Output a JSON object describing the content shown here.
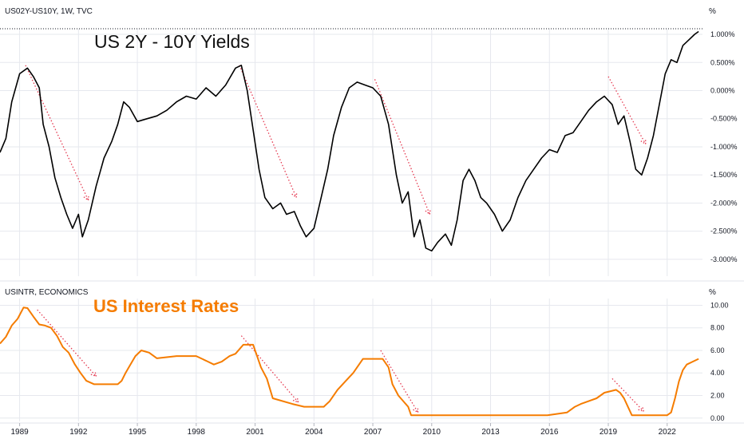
{
  "header": {
    "top_symbol": "US02Y-US10Y, 1W, TVC",
    "top_unit": "%",
    "top_overlay_title": "US 2Y - 10Y Yields",
    "bottom_symbol": "USINTR, ECONOMICS",
    "bottom_unit": "%",
    "bottom_overlay_title": "US Interest Rates"
  },
  "colors": {
    "yield_line": "#000000",
    "rate_line": "#f57c00",
    "overlay_title_top": "#111111",
    "overlay_title_bottom": "#f57c00",
    "annotation_dotted": "#e53950",
    "grid": "#e6e8ee",
    "axis_text": "#131722"
  },
  "chart_data": [
    {
      "type": "line",
      "title": "US 2Y - 10Y Yields",
      "symbol": "US02Y-US10Y, 1W, TVC",
      "y_unit": "%",
      "ylim": [
        -3.3,
        1.1
      ],
      "y_ticks": [
        "1.000%",
        "0.500%",
        "0.000%",
        "-0.500%",
        "-1.000%",
        "-1.500%",
        "-2.000%",
        "-2.500%",
        "-3.000%"
      ],
      "y_tick_values": [
        1.0,
        0.5,
        0.0,
        -0.5,
        -1.0,
        -1.5,
        -2.0,
        -2.5,
        -3.0
      ],
      "xlim": [
        1988.0,
        2023.8
      ],
      "x_ticks": [
        "1989",
        "1992",
        "1995",
        "1998",
        "2001",
        "2004",
        "2007",
        "2010",
        "2013",
        "2016",
        "2019",
        "2022"
      ],
      "x_tick_values": [
        1989,
        1992,
        1995,
        1998,
        2001,
        2004,
        2007,
        2010,
        2013,
        2016,
        2019,
        2022
      ],
      "series": [
        {
          "x": [
            1988.0,
            1988.3,
            1988.6,
            1989.0,
            1989.4,
            1989.7,
            1990.0,
            1990.2,
            1990.5,
            1990.8,
            1991.1,
            1991.4,
            1991.7,
            1992.0,
            1992.2,
            1992.5,
            1992.9,
            1993.3,
            1993.7,
            1994.0,
            1994.3,
            1994.6,
            1995.0,
            1995.5,
            1996.0,
            1996.5,
            1997.0,
            1997.5,
            1998.0,
            1998.5,
            1999.0,
            1999.5,
            2000.0,
            2000.3,
            2000.6,
            2000.9,
            2001.2,
            2001.5,
            2001.9,
            2002.3,
            2002.6,
            2003.0,
            2003.3,
            2003.6,
            2004.0,
            2004.3,
            2004.7,
            2005.0,
            2005.4,
            2005.8,
            2006.2,
            2006.6,
            2007.0,
            2007.4,
            2007.8,
            2008.2,
            2008.5,
            2008.8,
            2009.1,
            2009.4,
            2009.7,
            2010.0,
            2010.3,
            2010.7,
            2011.0,
            2011.3,
            2011.6,
            2011.9,
            2012.2,
            2012.5,
            2012.8,
            2013.2,
            2013.6,
            2014.0,
            2014.4,
            2014.8,
            2015.2,
            2015.6,
            2016.0,
            2016.4,
            2016.8,
            2017.2,
            2017.6,
            2018.0,
            2018.4,
            2018.8,
            2019.2,
            2019.5,
            2019.8,
            2020.1,
            2020.4,
            2020.7,
            2021.0,
            2021.3,
            2021.6,
            2021.9,
            2022.2,
            2022.5,
            2022.8,
            2023.1,
            2023.4,
            2023.6
          ],
          "y": [
            -1.1,
            -0.85,
            -0.2,
            0.3,
            0.4,
            0.25,
            0.05,
            -0.6,
            -1.0,
            -1.55,
            -1.9,
            -2.2,
            -2.45,
            -2.2,
            -2.6,
            -2.3,
            -1.7,
            -1.2,
            -0.9,
            -0.6,
            -0.2,
            -0.3,
            -0.55,
            -0.5,
            -0.45,
            -0.35,
            -0.2,
            -0.1,
            -0.15,
            0.05,
            -0.1,
            0.1,
            0.4,
            0.45,
            0.0,
            -0.7,
            -1.4,
            -1.9,
            -2.1,
            -2.0,
            -2.2,
            -2.15,
            -2.4,
            -2.6,
            -2.45,
            -2.0,
            -1.4,
            -0.8,
            -0.3,
            0.05,
            0.15,
            0.1,
            0.05,
            -0.1,
            -0.6,
            -1.5,
            -2.0,
            -1.8,
            -2.6,
            -2.3,
            -2.8,
            -2.85,
            -2.7,
            -2.55,
            -2.75,
            -2.3,
            -1.6,
            -1.4,
            -1.6,
            -1.9,
            -2.0,
            -2.2,
            -2.5,
            -2.3,
            -1.9,
            -1.6,
            -1.4,
            -1.2,
            -1.05,
            -1.1,
            -0.8,
            -0.75,
            -0.55,
            -0.35,
            -0.2,
            -0.1,
            -0.25,
            -0.6,
            -0.45,
            -0.9,
            -1.4,
            -1.5,
            -1.2,
            -0.8,
            -0.25,
            0.3,
            0.55,
            0.5,
            0.8,
            0.9,
            1.0,
            1.05
          ]
        }
      ],
      "annotations": [
        {
          "type": "dotted-arrow",
          "x": [
            1989.3,
            1992.5
          ],
          "y": [
            0.45,
            -1.95
          ]
        },
        {
          "type": "dotted-arrow",
          "x": [
            2000.2,
            2003.1
          ],
          "y": [
            0.45,
            -1.9
          ]
        },
        {
          "type": "dotted-arrow",
          "x": [
            2007.1,
            2009.9
          ],
          "y": [
            0.2,
            -2.2
          ]
        },
        {
          "type": "dotted-arrow",
          "x": [
            2019.0,
            2020.9
          ],
          "y": [
            0.25,
            -0.95
          ]
        }
      ]
    },
    {
      "type": "line",
      "title": "US Interest Rates",
      "symbol": "USINTR, ECONOMICS",
      "y_unit": "%",
      "ylim": [
        -0.3,
        10.6
      ],
      "y_ticks": [
        "10.00",
        "8.00",
        "6.00",
        "4.00",
        "2.00",
        "0.00"
      ],
      "y_tick_values": [
        10,
        8,
        6,
        4,
        2,
        0
      ],
      "xlim": [
        1988.0,
        2023.8
      ],
      "x_ticks": [
        "1989",
        "1992",
        "1995",
        "1998",
        "2001",
        "2004",
        "2007",
        "2010",
        "2013",
        "2016",
        "2019",
        "2022"
      ],
      "x_tick_values": [
        1989,
        1992,
        1995,
        1998,
        2001,
        2004,
        2007,
        2010,
        2013,
        2016,
        2019,
        2022
      ],
      "series": [
        {
          "x": [
            1988.0,
            1988.3,
            1988.6,
            1988.9,
            1989.2,
            1989.4,
            1989.7,
            1990.0,
            1990.3,
            1990.6,
            1990.9,
            1991.2,
            1991.5,
            1991.8,
            1992.1,
            1992.4,
            1992.8,
            1993.5,
            1994.0,
            1994.2,
            1994.4,
            1994.6,
            1994.9,
            1995.2,
            1995.6,
            1996.0,
            1997.0,
            1997.3,
            1998.0,
            1998.6,
            1998.9,
            1999.3,
            1999.7,
            2000.0,
            2000.4,
            2000.9,
            2001.1,
            2001.3,
            2001.6,
            2001.9,
            2002.9,
            2003.5,
            2004.5,
            2004.8,
            2005.2,
            2005.6,
            2006.0,
            2006.5,
            2007.5,
            2007.8,
            2008.0,
            2008.3,
            2008.8,
            2008.95,
            2015.9,
            2016.9,
            2017.3,
            2017.6,
            2018.0,
            2018.4,
            2018.8,
            2019.4,
            2019.6,
            2019.8,
            2020.2,
            2022.0,
            2022.2,
            2022.4,
            2022.6,
            2022.8,
            2023.0,
            2023.3,
            2023.6
          ],
          "y": [
            6.6,
            7.2,
            8.2,
            8.8,
            9.8,
            9.75,
            9.0,
            8.3,
            8.2,
            8.0,
            7.3,
            6.3,
            5.8,
            4.8,
            4.0,
            3.3,
            3.0,
            3.0,
            3.0,
            3.3,
            4.0,
            4.6,
            5.5,
            6.0,
            5.8,
            5.3,
            5.5,
            5.5,
            5.5,
            5.0,
            4.75,
            5.0,
            5.5,
            5.7,
            6.5,
            6.5,
            5.5,
            4.5,
            3.5,
            1.75,
            1.25,
            1.0,
            1.0,
            1.5,
            2.5,
            3.25,
            4.0,
            5.25,
            5.25,
            4.5,
            3.0,
            2.0,
            1.0,
            0.25,
            0.25,
            0.5,
            1.0,
            1.25,
            1.5,
            1.75,
            2.25,
            2.5,
            2.25,
            1.75,
            0.25,
            0.25,
            0.5,
            1.75,
            3.25,
            4.25,
            4.75,
            5.0,
            5.25
          ]
        }
      ],
      "annotations": [
        {
          "type": "dotted-arrow",
          "x": [
            1989.9,
            1992.9
          ],
          "y": [
            9.6,
            3.7
          ]
        },
        {
          "type": "dotted-arrow",
          "x": [
            2000.3,
            2003.2
          ],
          "y": [
            7.3,
            1.4
          ]
        },
        {
          "type": "dotted-arrow",
          "x": [
            2007.4,
            2009.3
          ],
          "y": [
            6.0,
            0.5
          ]
        },
        {
          "type": "dotted-arrow",
          "x": [
            2019.2,
            2020.8
          ],
          "y": [
            3.5,
            0.6
          ]
        }
      ]
    }
  ]
}
